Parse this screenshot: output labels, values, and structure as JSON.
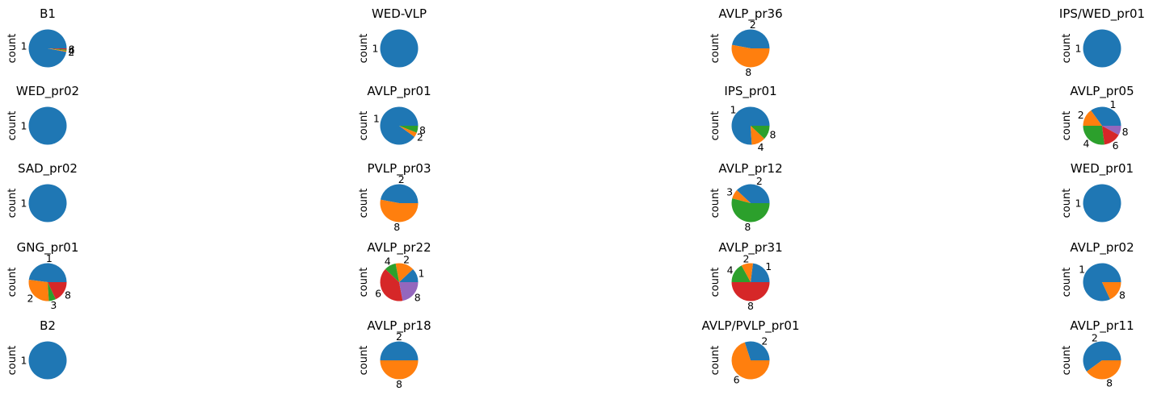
{
  "colors": [
    "#1f77b4",
    "#ff7f0e",
    "#2ca02c",
    "#d62728",
    "#9467bd"
  ],
  "chart_data": [
    {
      "type": "pie",
      "title": "B1",
      "ylabel": "count",
      "labels": [
        "1",
        "2",
        "4",
        "8"
      ],
      "values": [
        97,
        1,
        1,
        1
      ]
    },
    {
      "type": "pie",
      "title": "WED-VLP",
      "ylabel": "count",
      "labels": [
        "1"
      ],
      "values": [
        1
      ]
    },
    {
      "type": "pie",
      "title": "AVLP_pr36",
      "ylabel": "count",
      "labels": [
        "2",
        "8"
      ],
      "values": [
        47,
        53
      ]
    },
    {
      "type": "pie",
      "title": "IPS/WED_pr01",
      "ylabel": "count",
      "labels": [
        "1"
      ],
      "values": [
        1
      ]
    },
    {
      "type": "pie",
      "title": "WED_pr02",
      "ylabel": "count",
      "labels": [
        "1"
      ],
      "values": [
        1
      ]
    },
    {
      "type": "pie",
      "title": "AVLP_pr01",
      "ylabel": "count",
      "labels": [
        "1",
        "2",
        "8"
      ],
      "values": [
        90,
        4,
        6
      ]
    },
    {
      "type": "pie",
      "title": "IPS_pr01",
      "ylabel": "count",
      "labels": [
        "1",
        "4",
        "8"
      ],
      "values": [
        76,
        12,
        12
      ]
    },
    {
      "type": "pie",
      "title": "AVLP_pr05",
      "ylabel": "count",
      "labels": [
        "1",
        "2",
        "4",
        "6",
        "8"
      ],
      "values": [
        35,
        15,
        27,
        15,
        8
      ]
    },
    {
      "type": "pie",
      "title": "SAD_pr02",
      "ylabel": "count",
      "labels": [
        "1"
      ],
      "values": [
        1
      ]
    },
    {
      "type": "pie",
      "title": "PVLP_pr03",
      "ylabel": "count",
      "labels": [
        "2",
        "8"
      ],
      "values": [
        47,
        53
      ]
    },
    {
      "type": "pie",
      "title": "AVLP_pr12",
      "ylabel": "count",
      "labels": [
        "2",
        "3",
        "8"
      ],
      "values": [
        38,
        8,
        54
      ]
    },
    {
      "type": "pie",
      "title": "WED_pr01",
      "ylabel": "count",
      "labels": [
        "1"
      ],
      "values": [
        1
      ]
    },
    {
      "type": "pie",
      "title": "GNG_pr01",
      "ylabel": "count",
      "labels": [
        "1",
        "2",
        "3",
        "8"
      ],
      "values": [
        48,
        28,
        6,
        18
      ]
    },
    {
      "type": "pie",
      "title": "AVLP_pr22",
      "ylabel": "count",
      "labels": [
        "1",
        "2",
        "4",
        "6",
        "8"
      ],
      "values": [
        12,
        16,
        10,
        40,
        22
      ]
    },
    {
      "type": "pie",
      "title": "AVLP_pr31",
      "ylabel": "count",
      "labels": [
        "1",
        "2",
        "4",
        "8"
      ],
      "values": [
        23,
        10,
        17,
        50
      ]
    },
    {
      "type": "pie",
      "title": "AVLP_pr02",
      "ylabel": "count",
      "labels": [
        "1",
        "8"
      ],
      "values": [
        82,
        18
      ]
    },
    {
      "type": "pie",
      "title": "B2",
      "ylabel": "count",
      "labels": [
        "1"
      ],
      "values": [
        1
      ]
    },
    {
      "type": "pie",
      "title": "AVLP_pr18",
      "ylabel": "count",
      "labels": [
        "2",
        "8"
      ],
      "values": [
        50,
        50
      ]
    },
    {
      "type": "pie",
      "title": "AVLP/PVLP_pr01",
      "ylabel": "count",
      "labels": [
        "2",
        "6"
      ],
      "values": [
        30,
        70
      ]
    },
    {
      "type": "pie",
      "title": "AVLP_pr11",
      "ylabel": "count",
      "labels": [
        "2",
        "8"
      ],
      "values": [
        60,
        40
      ]
    }
  ]
}
